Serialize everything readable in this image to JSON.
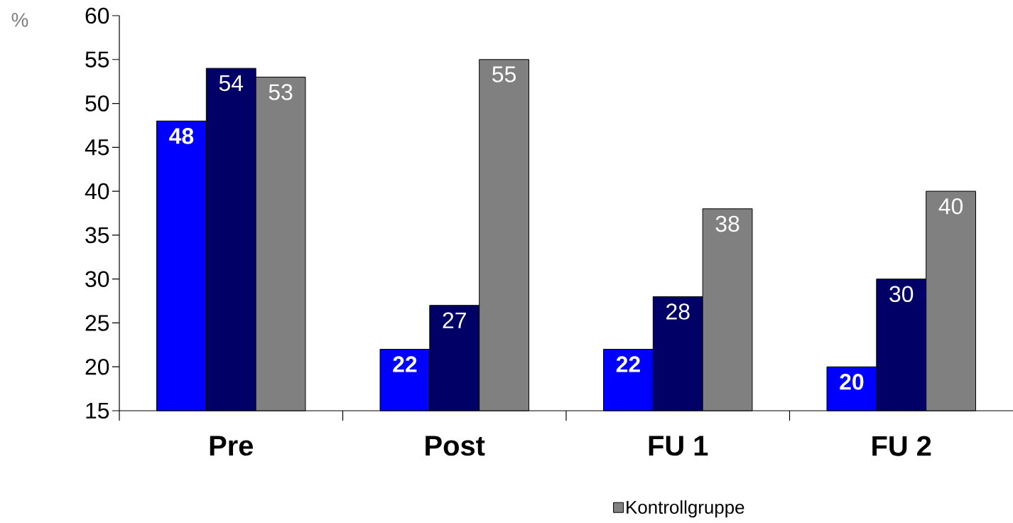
{
  "chart_data": {
    "type": "bar",
    "ylabel": "%",
    "categories": [
      "Pre",
      "Post",
      "FU 1",
      "FU 2"
    ],
    "series": [
      {
        "color": "#0000ff",
        "values": [
          48,
          22,
          22,
          20
        ]
      },
      {
        "color": "#000066",
        "values": [
          54,
          27,
          28,
          30
        ]
      },
      {
        "name": "Kontrollgruppe",
        "color": "#808080",
        "values": [
          53,
          55,
          38,
          40
        ]
      }
    ],
    "ylim": [
      15,
      60
    ],
    "yticks": [
      15,
      20,
      25,
      30,
      35,
      40,
      45,
      50,
      55,
      60
    ],
    "data_labels": true,
    "legend": "bottom",
    "grid": false
  }
}
